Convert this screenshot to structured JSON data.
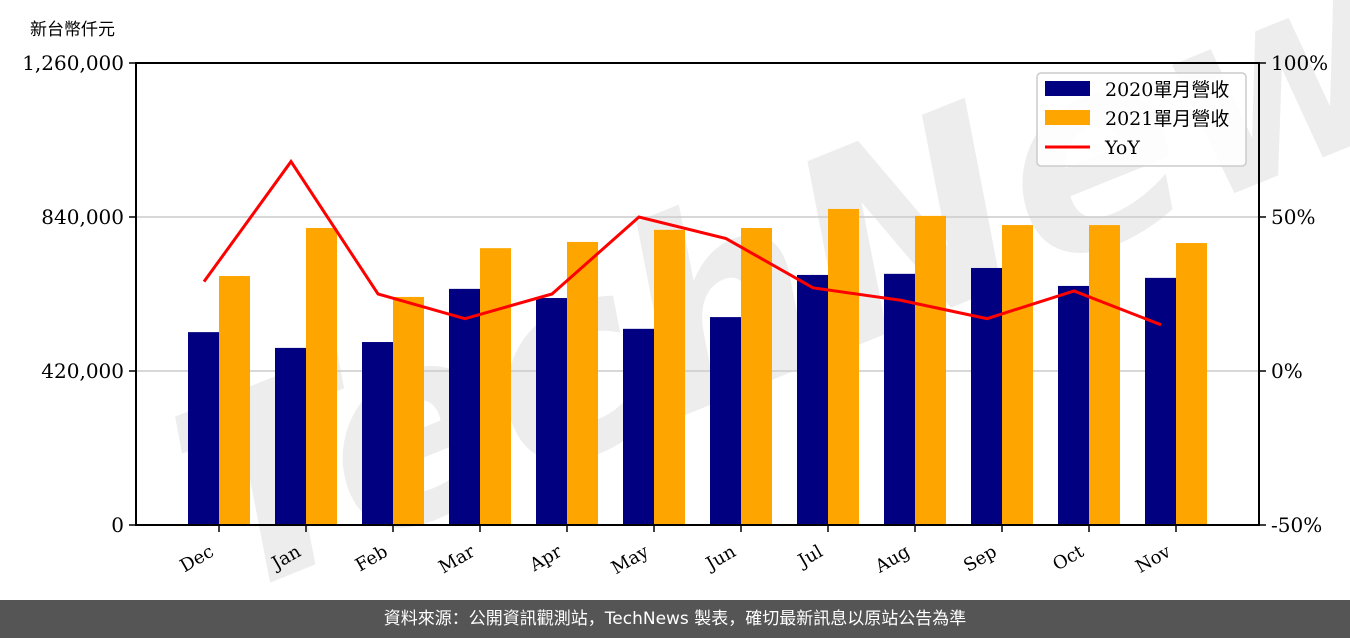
{
  "chart_data": {
    "type": "bar",
    "title": "",
    "ylabel": "新台幣仟元",
    "xlabel": "",
    "categories": [
      "Dec",
      "Jan",
      "Feb",
      "Mar",
      "Apr",
      "May",
      "Jun",
      "Jul",
      "Aug",
      "Sep",
      "Oct",
      "Nov"
    ],
    "series": [
      {
        "name": "2020單月營收",
        "type": "bar",
        "axis": "left",
        "color": "#000080",
        "values": [
          526000,
          483000,
          499000,
          644000,
          619000,
          535000,
          567000,
          682000,
          685000,
          701000,
          652000,
          674000
        ]
      },
      {
        "name": "2021單月營收",
        "type": "bar",
        "axis": "left",
        "color": "#FFA500",
        "values": [
          679000,
          810000,
          622000,
          755000,
          772000,
          805000,
          810000,
          862000,
          843000,
          818000,
          818000,
          769000
        ]
      },
      {
        "name": "YoY",
        "type": "line",
        "axis": "right",
        "color": "#FF0000",
        "values": [
          29,
          68,
          25,
          17,
          25,
          50,
          43,
          27,
          23,
          17,
          26,
          15
        ]
      }
    ],
    "ylim": [
      0,
      1260000
    ],
    "yticks": [
      0,
      420000,
      840000,
      1260000
    ],
    "ytick_labels": [
      "0",
      "420,000",
      "840,000",
      "1,260,000"
    ],
    "y2lim": [
      -50,
      100
    ],
    "y2ticks": [
      -50,
      0,
      50,
      100
    ],
    "y2tick_labels": [
      "-50%",
      "0%",
      "50%",
      "100%"
    ],
    "grid": "horizontal",
    "legend_position": "upper right",
    "watermark": "TechNews"
  },
  "unit_label": "新台幣仟元",
  "footer": {
    "text": "資料來源：公開資訊觀測站，TechNews 製表，確切最新訊息以原站公告為準"
  }
}
